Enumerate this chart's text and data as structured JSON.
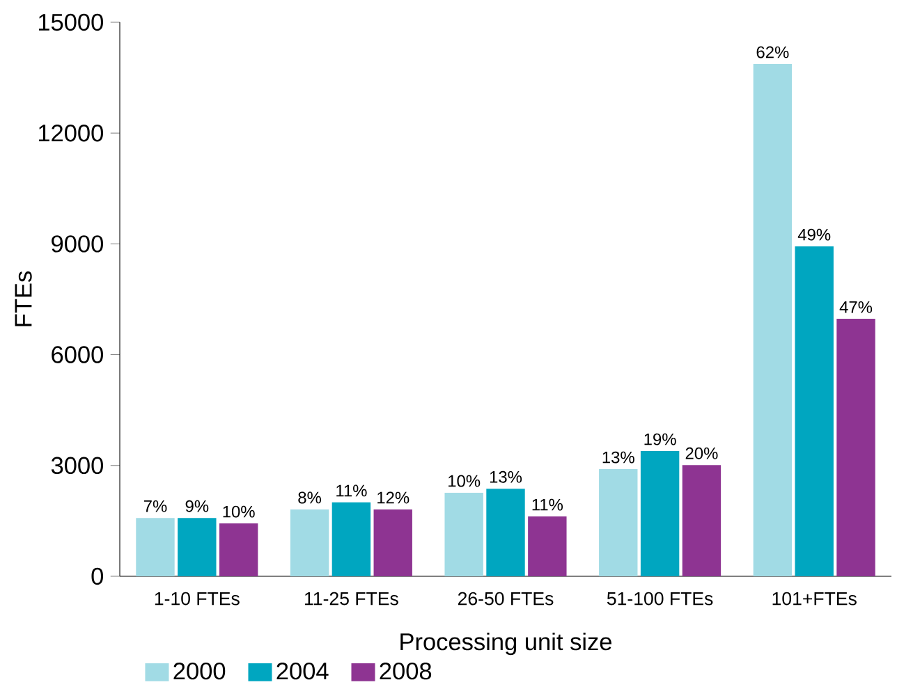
{
  "chart_data": {
    "type": "bar",
    "xlabel": "Processing unit size",
    "ylabel": "FTEs",
    "categories": [
      "1-10 FTEs",
      "11-25 FTEs",
      "26-50 FTEs",
      "51-100 FTEs",
      "101+FTEs"
    ],
    "series": [
      {
        "name": "2000",
        "color": "#a1dbe5",
        "values": [
          1580,
          1810,
          2260,
          2900,
          13870
        ]
      },
      {
        "name": "2004",
        "color": "#00a6c0",
        "values": [
          1580,
          2000,
          2370,
          3390,
          8930
        ]
      },
      {
        "name": "2008",
        "color": "#8e3492",
        "values": [
          1430,
          1810,
          1620,
          3010,
          6970
        ]
      }
    ],
    "annotations": [
      "7%",
      "8%",
      "10%",
      "13%",
      "62%",
      "9%",
      "11%",
      "13%",
      "19%",
      "49%",
      "10%",
      "12%",
      "11%",
      "20%",
      "47%"
    ],
    "ylim": [
      0,
      15000
    ],
    "yticks": [
      0,
      3000,
      6000,
      9000,
      12000,
      15000
    ],
    "grid": false,
    "legend": "bottom"
  }
}
